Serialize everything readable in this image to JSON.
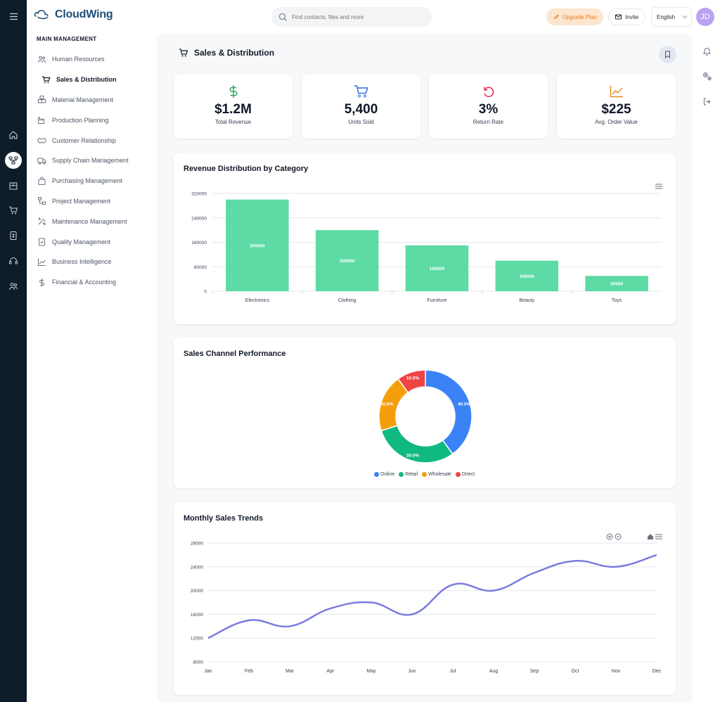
{
  "brand": {
    "name": "CloudWing"
  },
  "sidebar": {
    "section_label": "MAIN MANAGEMENT",
    "items": [
      {
        "label": "Human Resources",
        "icon": "users-icon"
      },
      {
        "label": "Sales & Distribution",
        "icon": "cart-icon",
        "active": true
      },
      {
        "label": "Material Management",
        "icon": "boxes-icon"
      },
      {
        "label": "Production Planning",
        "icon": "factory-icon"
      },
      {
        "label": "Customer Relationship",
        "icon": "handshake-icon"
      },
      {
        "label": "Supply Chain Management",
        "icon": "truck-icon"
      },
      {
        "label": "Purchasing Management",
        "icon": "bag-icon"
      },
      {
        "label": "Project Management",
        "icon": "project-icon"
      },
      {
        "label": "Maintenance Management",
        "icon": "tools-icon"
      },
      {
        "label": "Quality Management",
        "icon": "clipboard-check-icon"
      },
      {
        "label": "Business Intelligence",
        "icon": "chart-line-icon"
      },
      {
        "label": "Financial & Accounting",
        "icon": "dollar-icon"
      }
    ]
  },
  "header": {
    "search_placeholder": "Find contacts, files and more",
    "upgrade_label": "Upgrade Plan",
    "invite_label": "Invite",
    "language": "English",
    "avatar_initials": "JD"
  },
  "page": {
    "title": "Sales & Distribution"
  },
  "kpis": [
    {
      "value": "$1.2M",
      "label": "Total Revenue",
      "icon": "dollar-icon",
      "color": "#22a35a"
    },
    {
      "value": "5,400",
      "label": "Units Sold",
      "icon": "cart-icon",
      "color": "#2f6fe0"
    },
    {
      "value": "3%",
      "label": "Return Rate",
      "icon": "undo-icon",
      "color": "#e0334a"
    },
    {
      "value": "$225",
      "label": "Avg. Order Value",
      "icon": "trend-icon",
      "color": "#e08a1e"
    }
  ],
  "chart_data": [
    {
      "type": "bar",
      "title": "Revenue Distribution by Category",
      "categories": [
        "Electronics",
        "Clothing",
        "Furniture",
        "Beauty",
        "Toys"
      ],
      "values": [
        300000,
        200000,
        150000,
        100000,
        50000
      ],
      "yticks": [
        0,
        80000,
        160000,
        240000,
        320000
      ],
      "ylim": [
        0,
        320000
      ],
      "color": "#5cdba4",
      "grid": true
    },
    {
      "type": "pie",
      "title": "Sales Channel Performance",
      "labels": [
        "Online",
        "Retail",
        "Wholesale",
        "Direct"
      ],
      "values": [
        40,
        30,
        20,
        10
      ],
      "value_labels": [
        "40.0%",
        "30.0%",
        "20.0%",
        "10.0%"
      ],
      "colors": [
        "#3b82f6",
        "#10b981",
        "#f59e0b",
        "#ef4444"
      ],
      "legend": "bottom"
    },
    {
      "type": "line",
      "title": "Monthly Sales Trends",
      "categories": [
        "Jan",
        "Feb",
        "Mar",
        "Apr",
        "May",
        "Jun",
        "Jul",
        "Aug",
        "Sep",
        "Oct",
        "Nov",
        "Dec"
      ],
      "values": [
        12000,
        15000,
        14000,
        17000,
        18000,
        16000,
        21000,
        20000,
        23000,
        25000,
        24000,
        26000
      ],
      "yticks": [
        8000,
        12000,
        16000,
        20000,
        24000,
        28000
      ],
      "ylim": [
        8000,
        28000
      ],
      "color": "#7b7be0",
      "grid": true
    }
  ]
}
